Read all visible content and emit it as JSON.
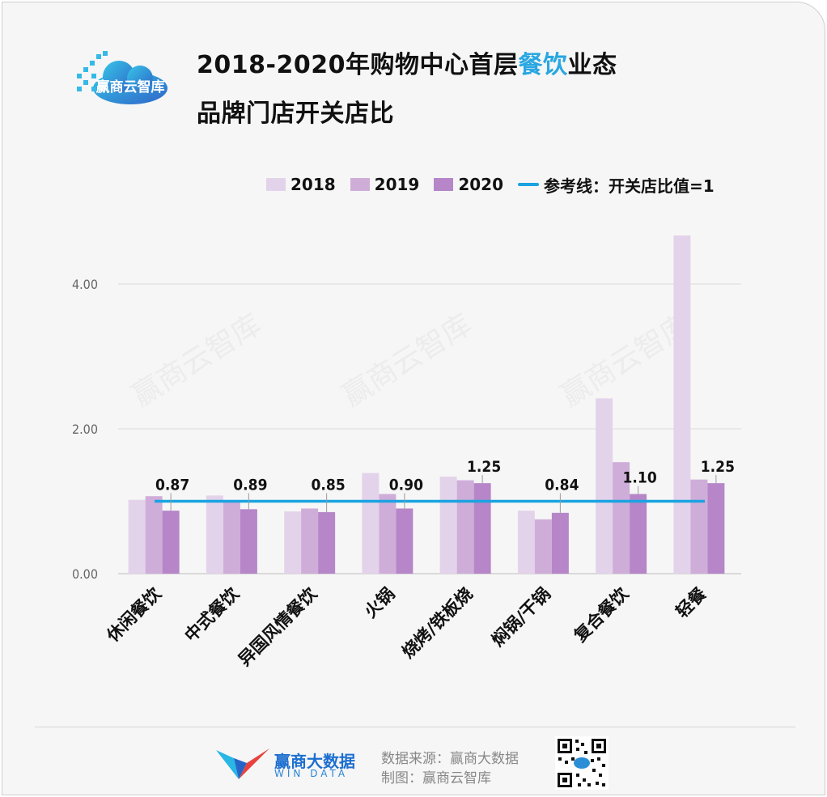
{
  "title": {
    "line1_before": "2018-2020年购物中心首层",
    "line1_highlight": "餐饮",
    "line1_after": "业态",
    "line2": "品牌门店开关店比"
  },
  "logo": {
    "text": "赢商云智库",
    "icon": "cloud-logo-icon"
  },
  "watermark": "赢商云智库",
  "colors": {
    "2018": "#e3d3ea",
    "2019": "#cfadd9",
    "2020": "#b686c8",
    "reference": "#1aa3e0",
    "highlight": "#29a7e1"
  },
  "legend": [
    {
      "label": "2018",
      "kind": "bar",
      "color": "#e3d3ea"
    },
    {
      "label": "2019",
      "kind": "bar",
      "color": "#cfadd9"
    },
    {
      "label": "2020",
      "kind": "bar",
      "color": "#b686c8"
    },
    {
      "label": "参考线：开关店比值=1",
      "kind": "line",
      "color": "#1aa3e0"
    }
  ],
  "chart_data": {
    "type": "bar",
    "title": "2018-2020年购物中心首层餐饮业态品牌门店开关店比",
    "categories": [
      "休闲餐饮",
      "中式餐饮",
      "异国风情餐饮",
      "火锅",
      "烧烤/铁板烧",
      "焖锅/干锅",
      "复合餐饮",
      "轻餐"
    ],
    "series": [
      {
        "name": "2018",
        "values": [
          1.02,
          1.08,
          0.86,
          1.39,
          1.34,
          0.87,
          2.42,
          4.67
        ]
      },
      {
        "name": "2019",
        "values": [
          1.07,
          1.01,
          0.9,
          1.1,
          1.29,
          0.75,
          1.54,
          1.3
        ]
      },
      {
        "name": "2020",
        "values": [
          0.87,
          0.89,
          0.85,
          0.9,
          1.25,
          0.84,
          1.1,
          1.25
        ]
      }
    ],
    "data_labels": [
      "0.87",
      "0.89",
      "0.85",
      "0.90",
      "1.25",
      "0.84",
      "1.10",
      "1.25"
    ],
    "reference_line": {
      "value": 1,
      "label": "参考线：开关店比值=1"
    },
    "yticks": [
      "0.00",
      "2.00",
      "4.00"
    ],
    "ylim": [
      0,
      4.8
    ],
    "grid": true,
    "legend_position": "top",
    "xlabel": "",
    "ylabel": ""
  },
  "footer": {
    "brand": "赢商大数据",
    "brand_en": "WIN DATA",
    "source": "数据来源：赢商大数据",
    "made_by": "制图：赢商云智库"
  }
}
